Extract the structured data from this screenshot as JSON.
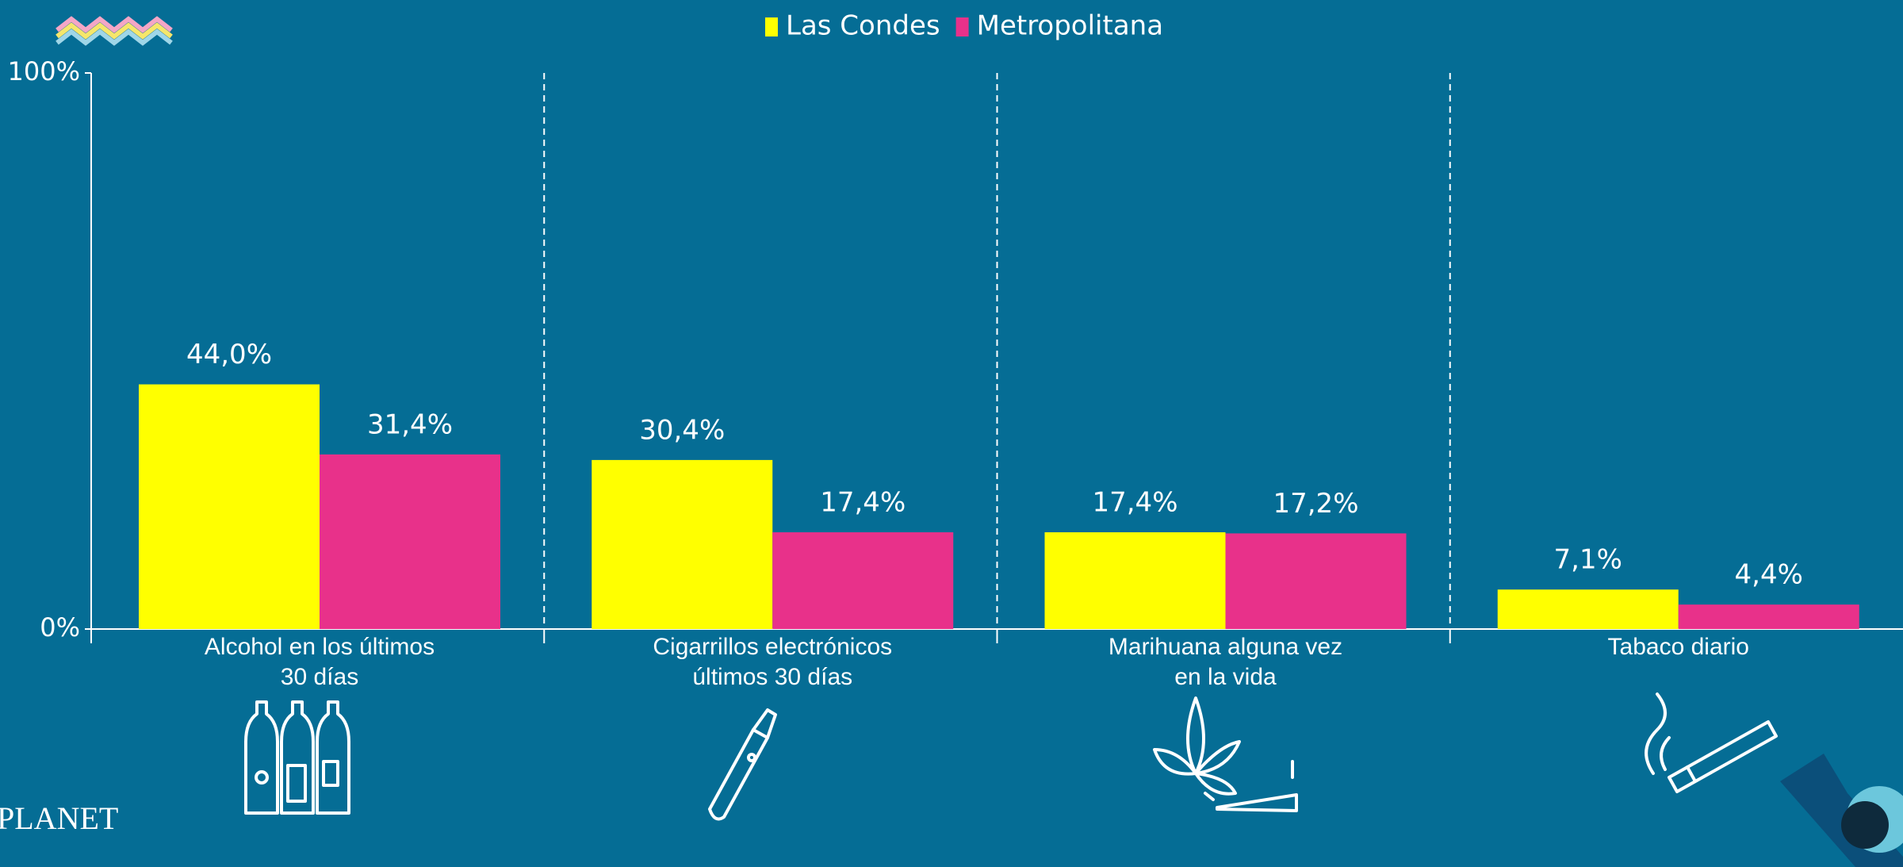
{
  "logo": "PLANET",
  "chart_data": {
    "type": "bar",
    "categories": [
      [
        "Alcohol en los últimos",
        "30 días"
      ],
      [
        "Cigarrillos electrónicos",
        "últimos 30 días"
      ],
      [
        "Marihuana alguna vez",
        "en la vida"
      ],
      [
        "Tabaco diario"
      ]
    ],
    "series": [
      {
        "name": "Las Condes",
        "color": "#ffff00",
        "values": [
          44.0,
          30.4,
          17.4,
          7.1
        ],
        "value_labels": [
          "44,0%",
          "30,4%",
          "17,4%",
          "7,1%"
        ]
      },
      {
        "name": "Metropolitana",
        "color": "#e8318a",
        "values": [
          31.4,
          17.4,
          17.2,
          4.4
        ],
        "value_labels": [
          "31,4%",
          "17,4%",
          "17,2%",
          "4,4%"
        ]
      }
    ],
    "ylim": [
      0,
      100
    ],
    "yticks": [
      {
        "value": 0,
        "label": "0%"
      },
      {
        "value": 100,
        "label": "100%"
      }
    ],
    "legend": "top"
  }
}
